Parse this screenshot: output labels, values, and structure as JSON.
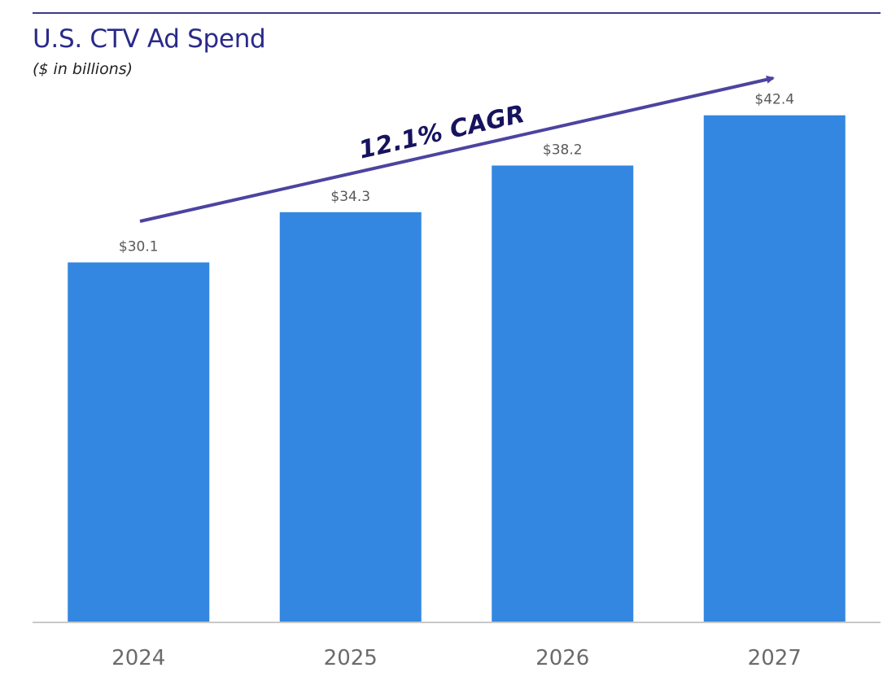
{
  "chart_data": {
    "type": "bar",
    "title": "U.S. CTV Ad Spend",
    "subtitle": "($ in billions)",
    "categories": [
      "2024",
      "2025",
      "2026",
      "2027"
    ],
    "values": [
      30.1,
      34.3,
      38.2,
      42.4
    ],
    "value_labels": [
      "$30.1",
      "$34.3",
      "$38.2",
      "$42.4"
    ],
    "ylim": [
      0,
      50
    ],
    "grid": false,
    "annotation": "12.1% CAGR",
    "colors": {
      "bar": "#3387e0",
      "title": "#2a2a8a",
      "arrow": "#4b44a0",
      "annotation": "#17135e"
    }
  }
}
